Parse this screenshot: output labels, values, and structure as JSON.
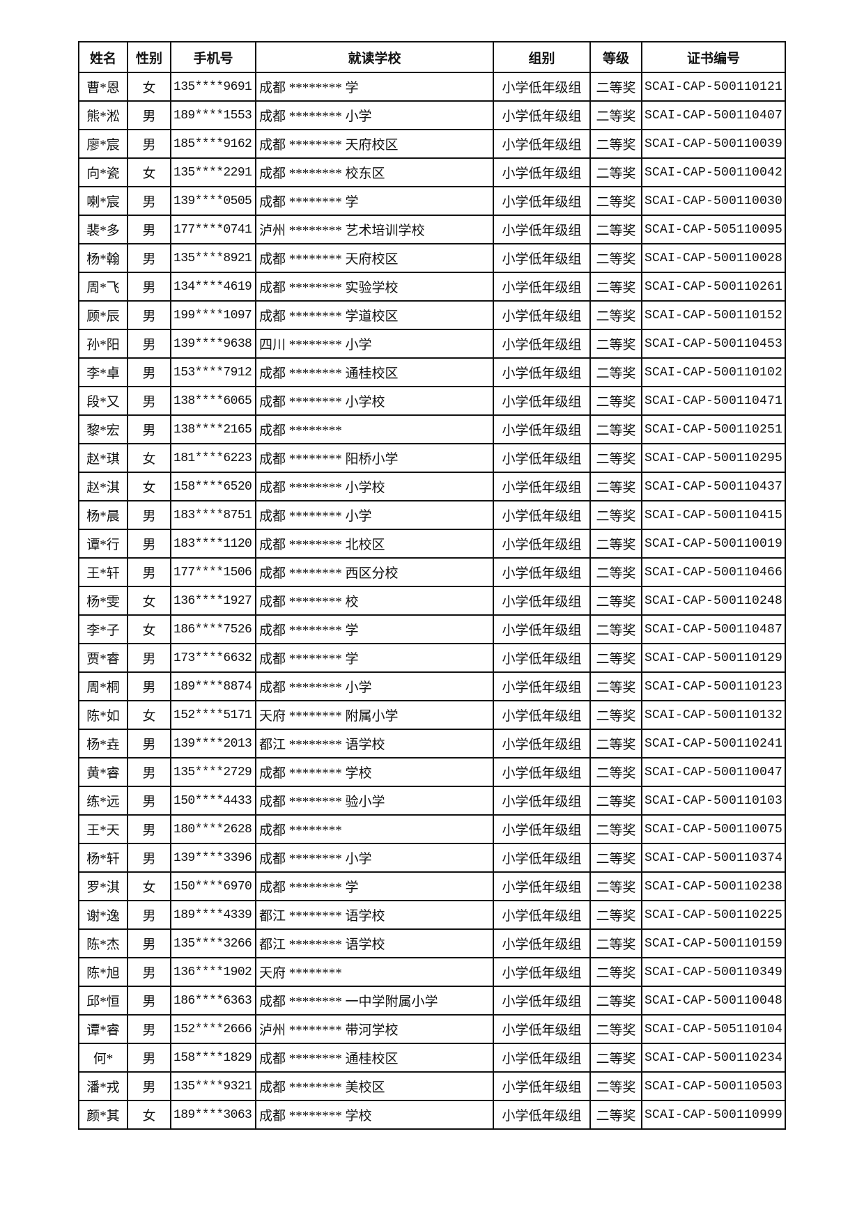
{
  "headers": [
    "姓名",
    "性别",
    "手机号",
    "就读学校",
    "组别",
    "等级",
    "证书编号"
  ],
  "rows": [
    [
      "曹*恩",
      "女",
      "135****9691",
      "成都 ******** 学",
      "小学低年级组",
      "二等奖",
      "SCAI-CAP-500110121"
    ],
    [
      "熊*淞",
      "男",
      "189****1553",
      "成都 ******** 小学",
      "小学低年级组",
      "二等奖",
      "SCAI-CAP-500110407"
    ],
    [
      "廖*宸",
      "男",
      "185****9162",
      "成都 ******** 天府校区",
      "小学低年级组",
      "二等奖",
      "SCAI-CAP-500110039"
    ],
    [
      "向*瓷",
      "女",
      "135****2291",
      "成都 ******** 校东区",
      "小学低年级组",
      "二等奖",
      "SCAI-CAP-500110042"
    ],
    [
      "喇*宸",
      "男",
      "139****0505",
      "成都 ******** 学",
      "小学低年级组",
      "二等奖",
      "SCAI-CAP-500110030"
    ],
    [
      "裴*多",
      "男",
      "177****0741",
      "泸州 ******** 艺术培训学校",
      "小学低年级组",
      "二等奖",
      "SCAI-CAP-505110095"
    ],
    [
      "杨*翰",
      "男",
      "135****8921",
      "成都 ******** 天府校区",
      "小学低年级组",
      "二等奖",
      "SCAI-CAP-500110028"
    ],
    [
      "周*飞",
      "男",
      "134****4619",
      "成都 ******** 实验学校",
      "小学低年级组",
      "二等奖",
      "SCAI-CAP-500110261"
    ],
    [
      "顾*辰",
      "男",
      "199****1097",
      "成都 ******** 学道校区",
      "小学低年级组",
      "二等奖",
      "SCAI-CAP-500110152"
    ],
    [
      "孙*阳",
      "男",
      "139****9638",
      "四川 ******** 小学",
      "小学低年级组",
      "二等奖",
      "SCAI-CAP-500110453"
    ],
    [
      "李*卓",
      "男",
      "153****7912",
      "成都 ******** 通桂校区",
      "小学低年级组",
      "二等奖",
      "SCAI-CAP-500110102"
    ],
    [
      "段*又",
      "男",
      "138****6065",
      "成都 ******** 小学校",
      "小学低年级组",
      "二等奖",
      "SCAI-CAP-500110471"
    ],
    [
      "黎*宏",
      "男",
      "138****2165",
      "成都 ********",
      "小学低年级组",
      "二等奖",
      "SCAI-CAP-500110251"
    ],
    [
      "赵*琪",
      "女",
      "181****6223",
      "成都 ******** 阳桥小学",
      "小学低年级组",
      "二等奖",
      "SCAI-CAP-500110295"
    ],
    [
      "赵*淇",
      "女",
      "158****6520",
      "成都 ******** 小学校",
      "小学低年级组",
      "二等奖",
      "SCAI-CAP-500110437"
    ],
    [
      "杨*晨",
      "男",
      "183****8751",
      "成都 ******** 小学",
      "小学低年级组",
      "二等奖",
      "SCAI-CAP-500110415"
    ],
    [
      "谭*行",
      "男",
      "183****1120",
      "成都 ******** 北校区",
      "小学低年级组",
      "二等奖",
      "SCAI-CAP-500110019"
    ],
    [
      "王*轩",
      "男",
      "177****1506",
      "成都 ******** 西区分校",
      "小学低年级组",
      "二等奖",
      "SCAI-CAP-500110466"
    ],
    [
      "杨*雯",
      "女",
      "136****1927",
      "成都 ******** 校",
      "小学低年级组",
      "二等奖",
      "SCAI-CAP-500110248"
    ],
    [
      "李*子",
      "女",
      "186****7526",
      "成都 ******** 学",
      "小学低年级组",
      "二等奖",
      "SCAI-CAP-500110487"
    ],
    [
      "贾*睿",
      "男",
      "173****6632",
      "成都 ******** 学",
      "小学低年级组",
      "二等奖",
      "SCAI-CAP-500110129"
    ],
    [
      "周*桐",
      "男",
      "189****8874",
      "成都 ******** 小学",
      "小学低年级组",
      "二等奖",
      "SCAI-CAP-500110123"
    ],
    [
      "陈*如",
      "女",
      "152****5171",
      "天府 ******** 附属小学",
      "小学低年级组",
      "二等奖",
      "SCAI-CAP-500110132"
    ],
    [
      "杨*垚",
      "男",
      "139****2013",
      "都江 ******** 语学校",
      "小学低年级组",
      "二等奖",
      "SCAI-CAP-500110241"
    ],
    [
      "黄*睿",
      "男",
      "135****2729",
      "成都 ******** 学校",
      "小学低年级组",
      "二等奖",
      "SCAI-CAP-500110047"
    ],
    [
      "练*远",
      "男",
      "150****4433",
      "成都 ******** 验小学",
      "小学低年级组",
      "二等奖",
      "SCAI-CAP-500110103"
    ],
    [
      "王*天",
      "男",
      "180****2628",
      "成都 ********",
      "小学低年级组",
      "二等奖",
      "SCAI-CAP-500110075"
    ],
    [
      "杨*轩",
      "男",
      "139****3396",
      "成都 ******** 小学",
      "小学低年级组",
      "二等奖",
      "SCAI-CAP-500110374"
    ],
    [
      "罗*淇",
      "女",
      "150****6970",
      "成都 ******** 学",
      "小学低年级组",
      "二等奖",
      "SCAI-CAP-500110238"
    ],
    [
      "谢*逸",
      "男",
      "189****4339",
      "都江 ******** 语学校",
      "小学低年级组",
      "二等奖",
      "SCAI-CAP-500110225"
    ],
    [
      "陈*杰",
      "男",
      "135****3266",
      "都江 ******** 语学校",
      "小学低年级组",
      "二等奖",
      "SCAI-CAP-500110159"
    ],
    [
      "陈*旭",
      "男",
      "136****1902",
      "天府 ********",
      "小学低年级组",
      "二等奖",
      "SCAI-CAP-500110349"
    ],
    [
      "邱*恒",
      "男",
      "186****6363",
      "成都 ******** 一中学附属小学",
      "小学低年级组",
      "二等奖",
      "SCAI-CAP-500110048"
    ],
    [
      "谭*睿",
      "男",
      "152****2666",
      "泸州 ******** 带河学校",
      "小学低年级组",
      "二等奖",
      "SCAI-CAP-505110104"
    ],
    [
      "何*",
      "男",
      "158****1829",
      "成都 ******** 通桂校区",
      "小学低年级组",
      "二等奖",
      "SCAI-CAP-500110234"
    ],
    [
      "潘*戎",
      "男",
      "135****9321",
      "成都 ******** 美校区",
      "小学低年级组",
      "二等奖",
      "SCAI-CAP-500110503"
    ],
    [
      "颜*其",
      "女",
      "189****3063",
      "成都 ******** 学校",
      "小学低年级组",
      "二等奖",
      "SCAI-CAP-500110999"
    ]
  ]
}
